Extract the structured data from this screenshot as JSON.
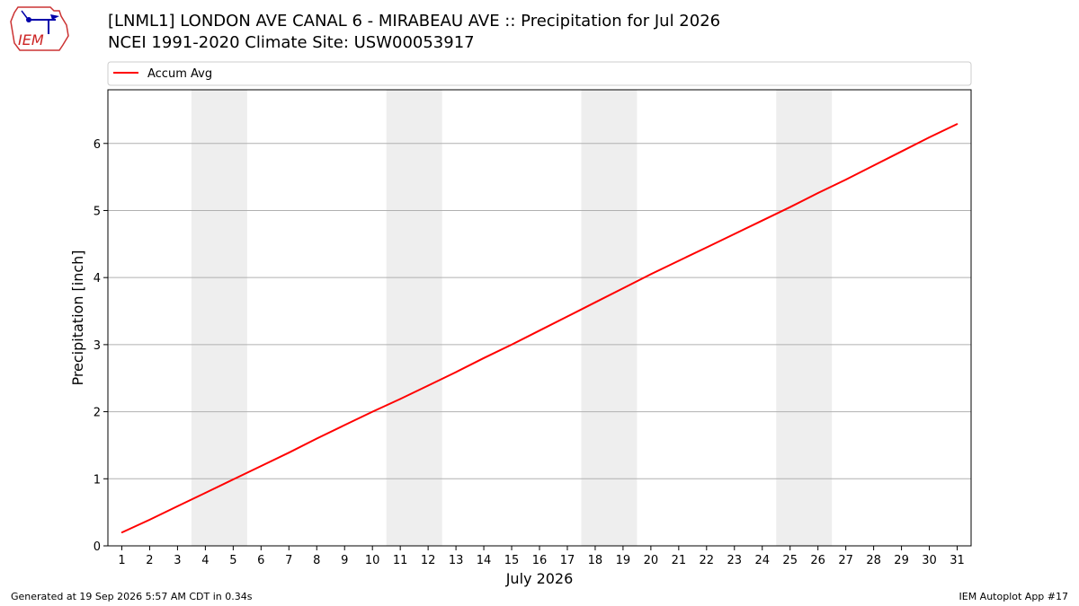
{
  "header": {
    "title_line1": "[LNML1] LONDON AVE CANAL 6 - MIRABEAU AVE :: Precipitation for Jul 2026",
    "title_line2": "NCEI 1991-2020 Climate Site: USW00053917",
    "logo_text": "IEM"
  },
  "footer": {
    "generated": "Generated at 19 Sep 2026 5:57 AM CDT in 0.34s",
    "app": "IEM Autoplot App #17"
  },
  "colors": {
    "line": "#ff0000",
    "weekend_band": "#eeeeee",
    "grid": "#b0b0b0"
  },
  "chart_data": {
    "type": "line",
    "xlabel": "July 2026",
    "ylabel": "Precipitation [inch]",
    "xlim": [
      0.5,
      31.5
    ],
    "ylim": [
      0,
      6.8
    ],
    "x_ticks": [
      1,
      2,
      3,
      4,
      5,
      6,
      7,
      8,
      9,
      10,
      11,
      12,
      13,
      14,
      15,
      16,
      17,
      18,
      19,
      20,
      21,
      22,
      23,
      24,
      25,
      26,
      27,
      28,
      29,
      30,
      31
    ],
    "y_ticks": [
      0,
      1,
      2,
      3,
      4,
      5,
      6
    ],
    "grid": "horizontal",
    "legend_position": "top",
    "weekend_bands": [
      [
        3.5,
        5.5
      ],
      [
        10.5,
        12.5
      ],
      [
        17.5,
        19.5
      ],
      [
        24.5,
        26.5
      ]
    ],
    "series": [
      {
        "name": "Accum Avg",
        "color": "#ff0000",
        "x": [
          1,
          2,
          3,
          4,
          5,
          6,
          7,
          8,
          9,
          10,
          11,
          12,
          13,
          14,
          15,
          16,
          17,
          18,
          19,
          20,
          21,
          22,
          23,
          24,
          25,
          26,
          27,
          28,
          29,
          30,
          31
        ],
        "y": [
          0.2,
          0.39,
          0.59,
          0.79,
          0.99,
          1.19,
          1.39,
          1.6,
          1.8,
          2.0,
          2.19,
          2.39,
          2.59,
          2.8,
          3.0,
          3.21,
          3.42,
          3.63,
          3.84,
          4.05,
          4.25,
          4.45,
          4.65,
          4.85,
          5.05,
          5.26,
          5.46,
          5.67,
          5.88,
          6.09,
          6.29
        ]
      }
    ]
  }
}
